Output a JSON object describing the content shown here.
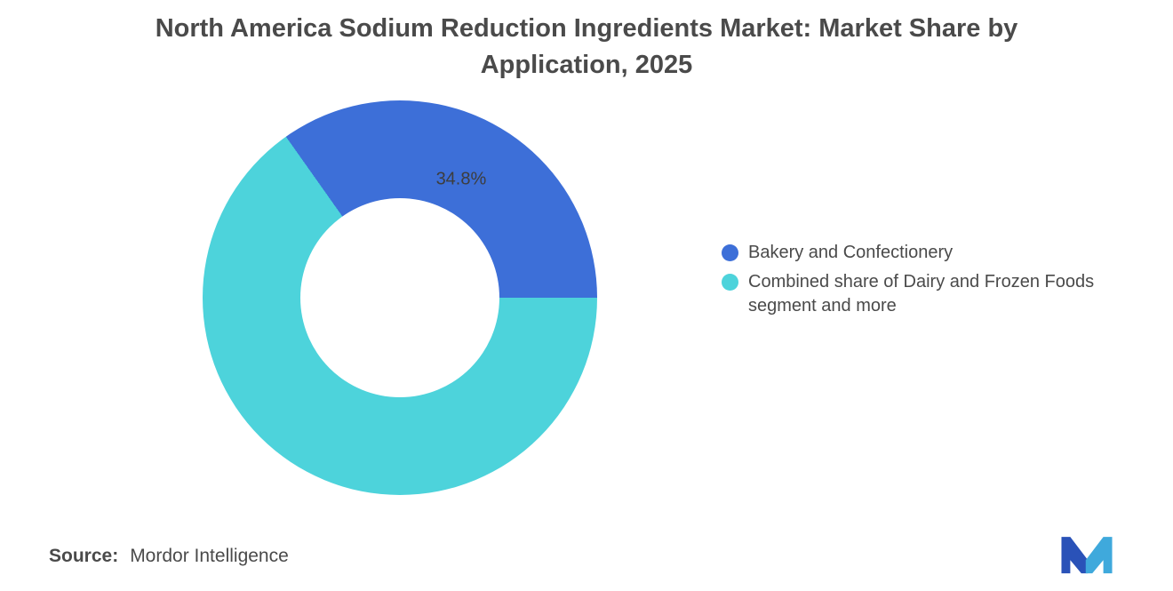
{
  "chart_data": {
    "type": "pie",
    "donut": true,
    "title": "North America Sodium Reduction Ingredients Market: Market Share by Application, 2025",
    "categories": [
      "Bakery and Confectionery",
      "Combined share of Dairy and Frozen Foods segment and more"
    ],
    "values": [
      34.8,
      65.2
    ],
    "colors": [
      "#3D6FD8",
      "#4DD3DB"
    ],
    "slice_labels": [
      "34.8%",
      ""
    ],
    "legend_position": "right",
    "legend": [
      {
        "label": "Bakery and Confectionery",
        "color": "#3D6FD8"
      },
      {
        "label": "Combined share of Dairy and Frozen Foods segment and more",
        "color": "#4DD3DB"
      }
    ]
  },
  "footer": {
    "source_label": "Source:",
    "source_value": "Mordor Intelligence"
  }
}
